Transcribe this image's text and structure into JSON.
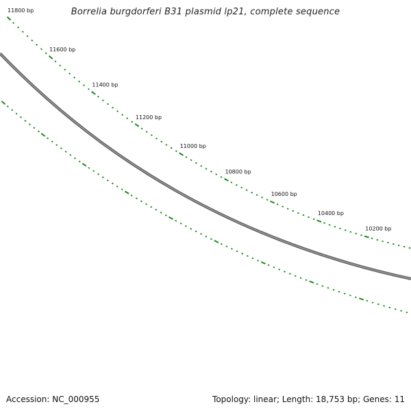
{
  "title": "Borrelia burgdorferi B31 plasmid lp21, complete sequence",
  "footer": {
    "accession": "Accession: NC_000955",
    "summary": "Topology: linear; Length: 18,753 bp; Genes: 11"
  },
  "colors": {
    "backbone": "#7a7a7a",
    "tick": "#1a8a1a",
    "text": "#111111"
  },
  "scale": {
    "unit": "bp",
    "tick_labels": [
      "11800 bp",
      "11600 bp",
      "11400 bp",
      "11200 bp",
      "11000 bp",
      "10800 bp",
      "10600 bp",
      "10400 bp",
      "10200 bp"
    ]
  }
}
